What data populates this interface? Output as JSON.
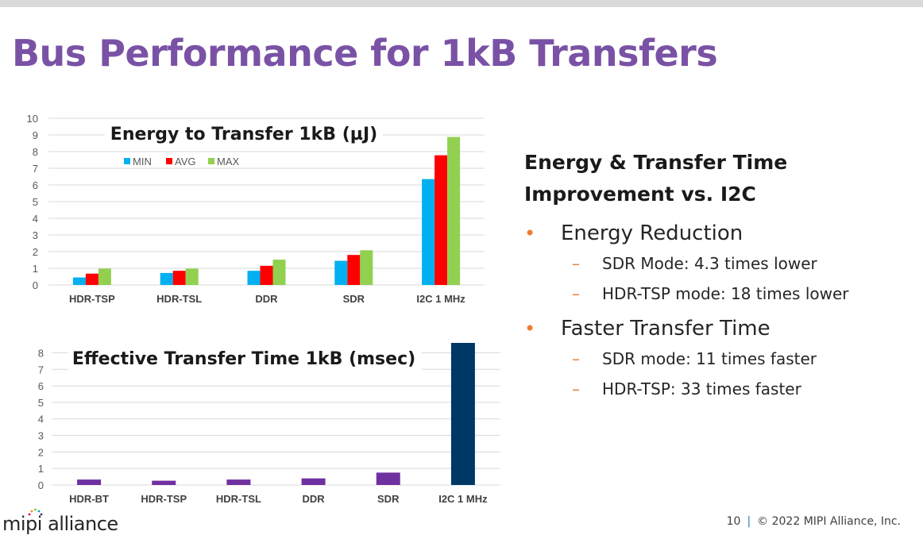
{
  "slide": {
    "title": "Bus Performance for 1kB Transfers",
    "page_number": "10",
    "separator": "|",
    "copyright": "© 2022 MIPI Alliance, Inc.",
    "logo_text": "mipi alliance"
  },
  "panel": {
    "heading_line1": "Energy & Transfer Time",
    "heading_line2": "Improvement vs. I2C",
    "bullets": [
      {
        "text": "Energy Reduction",
        "subs": [
          "SDR Mode: 4.3 times lower",
          "HDR-TSP mode: 18 times lower"
        ]
      },
      {
        "text": "Faster Transfer Time",
        "subs": [
          "SDR mode: 11 times faster",
          "HDR-TSP: 33  times faster"
        ]
      }
    ],
    "bullet_glyph": "•",
    "sub_glyph": "–"
  },
  "colors": {
    "title": "#7a52a5",
    "min": "#00b0f0",
    "avg": "#ff0000",
    "max": "#92d050",
    "time_bar": "#7030a0",
    "i2c_time_bar": "#003865",
    "accent": "#ed7d31"
  },
  "chart_data": [
    {
      "type": "bar",
      "title": "Energy to Transfer 1kB (µJ)",
      "categories": [
        "HDR-TSP",
        "HDR-TSL",
        "DDR",
        "SDR",
        "I2C 1 MHz"
      ],
      "series": [
        {
          "name": "MIN",
          "color": "#00b0f0",
          "values": [
            0.45,
            0.72,
            0.85,
            1.45,
            6.35
          ]
        },
        {
          "name": "AVG",
          "color": "#ff0000",
          "values": [
            0.68,
            0.85,
            1.15,
            1.8,
            7.78
          ]
        },
        {
          "name": "MAX",
          "color": "#92d050",
          "values": [
            0.98,
            0.98,
            1.52,
            2.08,
            8.88
          ]
        }
      ],
      "ylim": [
        0,
        10
      ],
      "yticks": [
        0,
        1,
        2,
        3,
        4,
        5,
        6,
        7,
        8,
        9,
        10
      ],
      "legend": "top-left",
      "grid": true
    },
    {
      "type": "bar",
      "title": "Effective Transfer Time 1kB (msec)",
      "categories": [
        "HDR-BT",
        "HDR-TSP",
        "HDR-TSL",
        "DDR",
        "SDR",
        "I2C 1 MHz"
      ],
      "values": [
        0.33,
        0.26,
        0.33,
        0.4,
        0.75,
        8.8
      ],
      "colors": [
        "#7030a0",
        "#7030a0",
        "#7030a0",
        "#7030a0",
        "#7030a0",
        "#003865"
      ],
      "ylim": [
        0,
        8.6
      ],
      "yticks": [
        0,
        1,
        2,
        3,
        4,
        5,
        6,
        7,
        8
      ],
      "grid": true
    }
  ]
}
